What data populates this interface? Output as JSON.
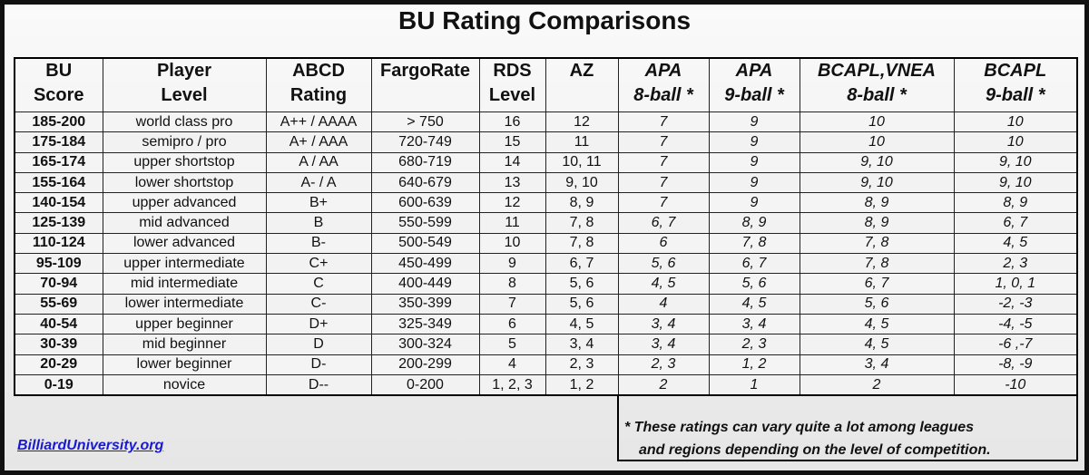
{
  "title": "BU Rating Comparisons",
  "table": {
    "header": [
      [
        "BU",
        "Score"
      ],
      [
        "Player",
        "Level"
      ],
      [
        "ABCD",
        "Rating"
      ],
      [
        "FargoRate"
      ],
      [
        "RDS",
        "Level"
      ],
      [
        "AZ"
      ],
      [
        "APA",
        "8-ball *"
      ],
      [
        "APA",
        "9-ball *"
      ],
      [
        "BCAPL,VNEA",
        "8-ball *"
      ],
      [
        "BCAPL",
        "9-ball *"
      ]
    ],
    "rows": [
      [
        "185-200",
        "world class pro",
        "A++ / AAAA",
        "> 750",
        "16",
        "12",
        "7",
        "9",
        "10",
        "10"
      ],
      [
        "175-184",
        "semipro / pro",
        "A+ / AAA",
        "720-749",
        "15",
        "11",
        "7",
        "9",
        "10",
        "10"
      ],
      [
        "165-174",
        "upper shortstop",
        "A / AA",
        "680-719",
        "14",
        "10, 11",
        "7",
        "9",
        "9, 10",
        "9, 10"
      ],
      [
        "155-164",
        "lower shortstop",
        "A- / A",
        "640-679",
        "13",
        "9, 10",
        "7",
        "9",
        "9, 10",
        "9, 10"
      ],
      [
        "140-154",
        "upper advanced",
        "B+",
        "600-639",
        "12",
        "8, 9",
        "7",
        "9",
        "8, 9",
        "8, 9"
      ],
      [
        "125-139",
        "mid advanced",
        "B",
        "550-599",
        "11",
        "7, 8",
        "6, 7",
        "8, 9",
        "8, 9",
        "6, 7"
      ],
      [
        "110-124",
        "lower advanced",
        "B-",
        "500-549",
        "10",
        "7, 8",
        "6",
        "7, 8",
        "7, 8",
        "4, 5"
      ],
      [
        "95-109",
        "upper intermediate",
        "C+",
        "450-499",
        "9",
        "6, 7",
        "5, 6",
        "6, 7",
        "7, 8",
        "2, 3"
      ],
      [
        "70-94",
        "mid intermediate",
        "C",
        "400-449",
        "8",
        "5, 6",
        "4, 5",
        "5, 6",
        "6, 7",
        "1, 0, 1"
      ],
      [
        "55-69",
        "lower intermediate",
        "C-",
        "350-399",
        "7",
        "5, 6",
        "4",
        "4, 5",
        "5, 6",
        "-2, -3"
      ],
      [
        "40-54",
        "upper beginner",
        "D+",
        "325-349",
        "6",
        "4, 5",
        "3, 4",
        "3, 4",
        "4, 5",
        "-4, -5"
      ],
      [
        "30-39",
        "mid beginner",
        "D",
        "300-324",
        "5",
        "3, 4",
        "3, 4",
        "2, 3",
        "4, 5",
        "-6 ,-7"
      ],
      [
        "20-29",
        "lower beginner",
        "D-",
        "200-299",
        "4",
        "2, 3",
        "2, 3",
        "1, 2",
        "3, 4",
        "-8, -9"
      ],
      [
        "0-19",
        "novice",
        "D--",
        "0-200",
        "1, 2, 3",
        "1, 2",
        "2",
        "1",
        "2",
        "-10"
      ]
    ]
  },
  "footnote": [
    "* These ratings can vary quite a lot among leagues",
    "and regions depending on the level of competition."
  ],
  "link": "BilliardUniversity.org"
}
